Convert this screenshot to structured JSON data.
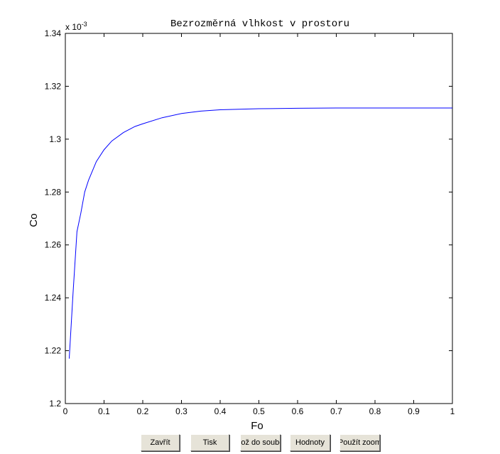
{
  "chart_data": {
    "type": "line",
    "title": "Bezrozměrná vlhkost v prostoru",
    "xlabel": "Fo",
    "ylabel": "Co",
    "exponent_label": "x 10",
    "exponent_power": "-3",
    "xlim": [
      0,
      1
    ],
    "ylim": [
      1.2,
      1.34
    ],
    "xticks": [
      "0",
      "0.1",
      "0.2",
      "0.3",
      "0.4",
      "0.5",
      "0.6",
      "0.7",
      "0.8",
      "0.9",
      "1"
    ],
    "xtick_values": [
      0,
      0.1,
      0.2,
      0.3,
      0.4,
      0.5,
      0.6,
      0.7,
      0.8,
      0.9,
      1
    ],
    "yticks": [
      "1.2",
      "1.22",
      "1.24",
      "1.26",
      "1.28",
      "1.3",
      "1.32",
      "1.34"
    ],
    "ytick_values": [
      1.2,
      1.22,
      1.24,
      1.26,
      1.28,
      1.3,
      1.32,
      1.34
    ],
    "grid": false,
    "line_color": "#0000ff",
    "series": [
      {
        "x": [
          0.01,
          0.02,
          0.03,
          0.04,
          0.05,
          0.06,
          0.08,
          0.1,
          0.12,
          0.15,
          0.18,
          0.2,
          0.25,
          0.3,
          0.35,
          0.4,
          0.5,
          0.6,
          0.7,
          0.8,
          0.9,
          1.0
        ],
        "values": [
          1.217,
          1.242,
          1.265,
          1.272,
          1.28,
          1.2845,
          1.2915,
          1.296,
          1.2993,
          1.3025,
          1.3048,
          1.3058,
          1.3081,
          1.3097,
          1.3106,
          1.3111,
          1.3115,
          1.3117,
          1.3118,
          1.3118,
          1.3118,
          1.3118
        ]
      }
    ]
  },
  "toolbar": {
    "buttons": [
      "Zavřít",
      "Tisk",
      "Ulož do souboru",
      "Hodnoty",
      "Použít zoom"
    ]
  }
}
